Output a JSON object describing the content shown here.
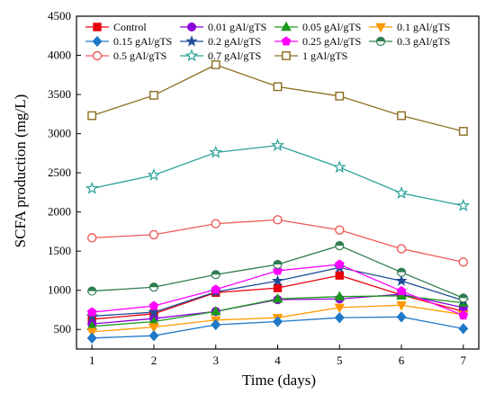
{
  "chart_data": {
    "type": "line",
    "xlabel": "Time (days)",
    "ylabel": "SCFA production (mg/L)",
    "xlim": [
      0.75,
      7.25
    ],
    "ylim": [
      250,
      4500
    ],
    "xticks": [
      1,
      2,
      3,
      4,
      5,
      6,
      7
    ],
    "yticks": [
      500,
      1000,
      1500,
      2000,
      2500,
      3000,
      3500,
      4000,
      4500
    ],
    "grid": false,
    "legend_position": "top-left, inside plot, 4 columns",
    "x": [
      1,
      2,
      3,
      4,
      5,
      6,
      7
    ],
    "series": [
      {
        "name": "Control",
        "color": "#e8000b",
        "marker": "square",
        "values": [
          630,
          700,
          970,
          1030,
          1190,
          940,
          730
        ]
      },
      {
        "name": "0.01 gAl/gTS",
        "color": "#8b00d9",
        "marker": "circle",
        "values": [
          570,
          640,
          730,
          880,
          890,
          950,
          780
        ]
      },
      {
        "name": "0.05 gAl/gTS",
        "color": "#1a9a1a",
        "marker": "triangle-up",
        "values": [
          540,
          600,
          730,
          890,
          920,
          930,
          840
        ]
      },
      {
        "name": "0.1 gAl/gTS",
        "color": "#ff9900",
        "marker": "triangle-down",
        "values": [
          470,
          530,
          620,
          650,
          780,
          810,
          690
        ]
      },
      {
        "name": "0.15 gAl/gTS",
        "color": "#1f78c8",
        "marker": "diamond",
        "values": [
          390,
          420,
          560,
          600,
          650,
          660,
          510
        ]
      },
      {
        "name": "0.2 gAl/gTS",
        "color": "#1f4f99",
        "marker": "star",
        "values": [
          670,
          720,
          980,
          1120,
          1290,
          1120,
          870
        ]
      },
      {
        "name": "0.25 gAl/gTS",
        "color": "#ff00ff",
        "marker": "pentagon",
        "values": [
          720,
          800,
          1010,
          1250,
          1330,
          990,
          680
        ]
      },
      {
        "name": "0.3 gAl/gTS",
        "color": "#2e7d4f",
        "marker": "circle-half",
        "values": [
          990,
          1040,
          1200,
          1330,
          1570,
          1230,
          900
        ]
      },
      {
        "name": "0.5 gAl/gTS",
        "color": "#ef5a5a",
        "marker": "circle-open",
        "values": [
          1670,
          1710,
          1850,
          1900,
          1770,
          1530,
          1360
        ]
      },
      {
        "name": "0.7 gAl/gTS",
        "color": "#2aa198",
        "marker": "star-open",
        "values": [
          2300,
          2470,
          2760,
          2850,
          2570,
          2240,
          2080
        ]
      },
      {
        "name": "1 gAl/gTS",
        "color": "#8c6d1f",
        "marker": "square-open",
        "values": [
          3230,
          3490,
          3880,
          3600,
          3480,
          3230,
          3030
        ]
      }
    ]
  }
}
